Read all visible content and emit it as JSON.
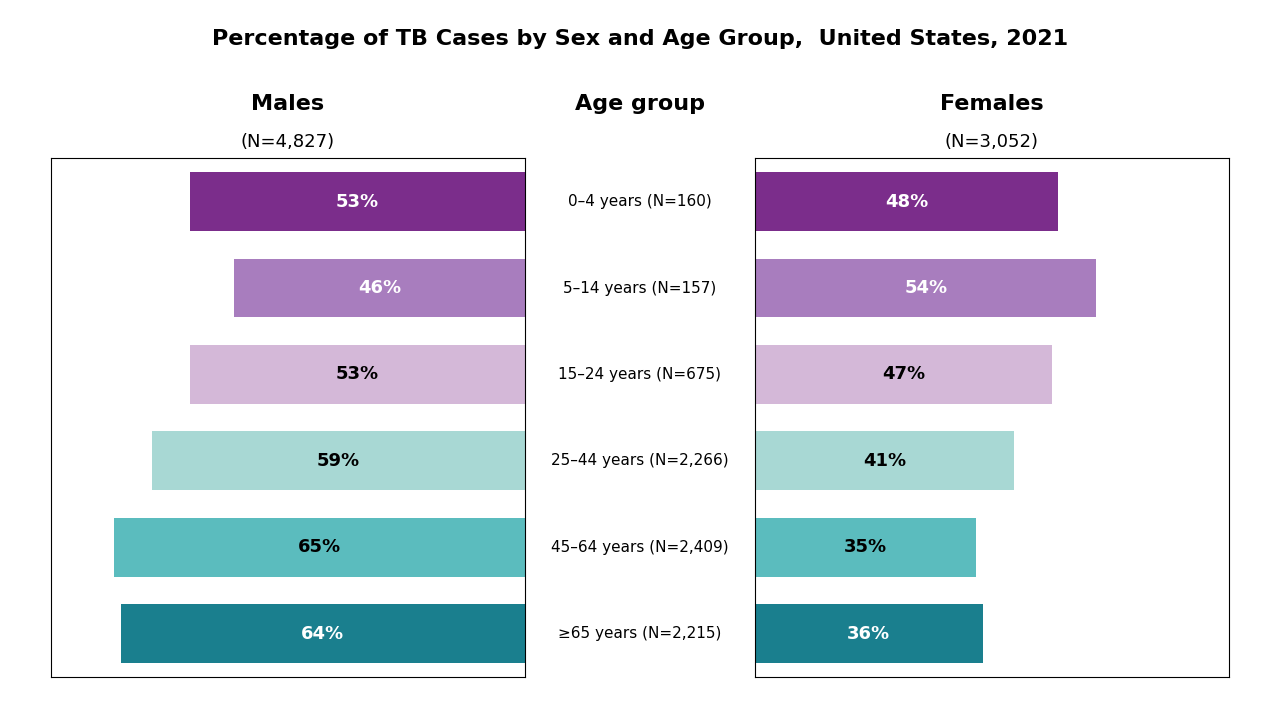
{
  "chart_data": {
    "type": "bar",
    "orientation": "horizontal",
    "title": "Percentage of TB Cases by Sex and Age Group,  United States, 2021",
    "ylabel": "Age group",
    "categories": [
      "0–4 years (N=160)",
      "5–14 years (N=157)",
      "15–24 years (N=675)",
      "25–44 years (N=2,266)",
      "45–64 years (N=2,409)",
      "≥65 years (N=2,215)"
    ],
    "colors": [
      "#7b2d8b",
      "#a87dbe",
      "#d4b8d8",
      "#a8d8d4",
      "#5bbcbe",
      "#1a7f8e"
    ],
    "series": [
      {
        "name": "Males",
        "values": [
          53,
          46,
          53,
          59,
          65,
          64
        ],
        "value_labels": [
          "53%",
          "46%",
          "53%",
          "59%",
          "65%",
          "64%"
        ]
      },
      {
        "name": "Females",
        "values": [
          48,
          54,
          47,
          41,
          35,
          36
        ],
        "value_labels": [
          "48%",
          "54%",
          "47%",
          "41%",
          "35%",
          "36%"
        ]
      }
    ],
    "annotations": [
      "(N=4,827)",
      "(N=3,052)"
    ],
    "xlim": [
      0,
      75
    ],
    "data_labels": true,
    "tick_labels": false,
    "grid": false
  }
}
